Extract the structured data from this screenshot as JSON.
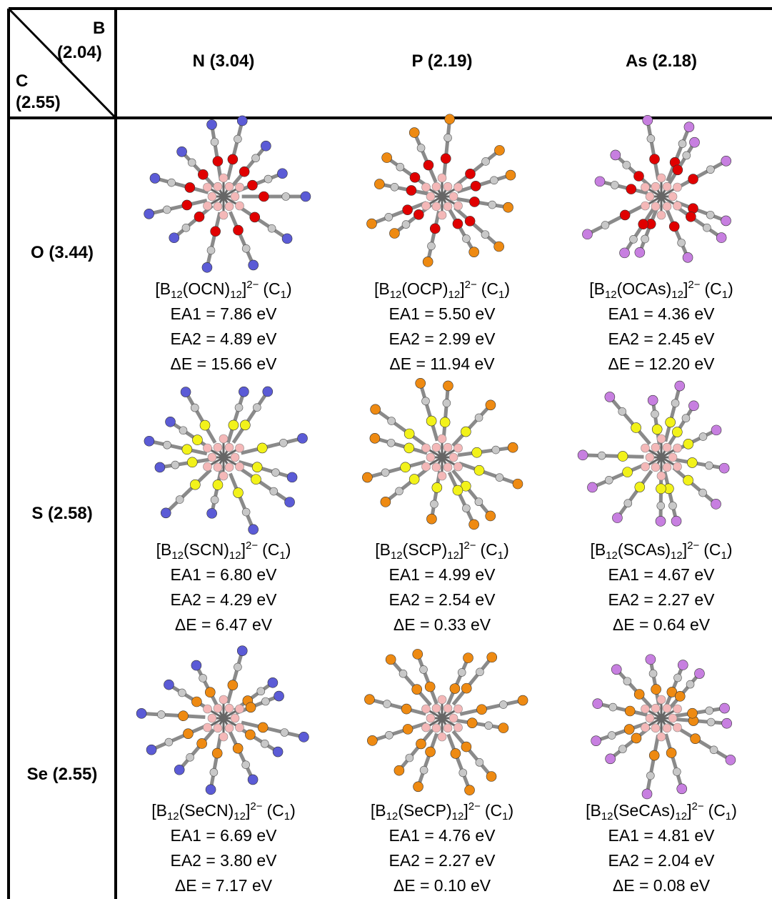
{
  "corner": {
    "top": "B",
    "top_value": "(2.04)",
    "left": "C",
    "left_value": "(2.55)"
  },
  "columns": [
    "N (3.04)",
    "P (2.19)",
    "As (2.18)"
  ],
  "rows": [
    {
      "label": "O (3.44)",
      "cells": [
        {
          "formula": [
            "[B",
            "12",
            "(OCN)",
            "12",
            "]",
            "2−",
            "(C",
            "1",
            ")"
          ],
          "ea1": "EA1 = 7.86 eV",
          "ea2": "EA2 = 4.89 eV",
          "de": "ΔE = 15.66 eV"
        },
        {
          "formula": [
            "[B",
            "12",
            "(OCP)",
            "12",
            "]",
            "2−",
            "(C",
            "1",
            ")"
          ],
          "ea1": "EA1 = 5.50 eV",
          "ea2": "EA2 = 2.99 eV",
          "de": "ΔE = 11.94 eV"
        },
        {
          "formula": [
            "[B",
            "12",
            "(OCAs)",
            "12",
            "]",
            "2−",
            "(C",
            "1",
            ")"
          ],
          "ea1": "EA1 = 4.36 eV",
          "ea2": "EA2 = 2.45 eV",
          "de": "ΔE = 12.20 eV"
        }
      ]
    },
    {
      "label": "S (2.58)",
      "cells": [
        {
          "formula": [
            "[B",
            "12",
            "(SCN)",
            "12",
            "]",
            "2−",
            "(C",
            "1",
            ")"
          ],
          "ea1": "EA1 = 6.80 eV",
          "ea2": "EA2 = 4.29 eV",
          "de": "ΔE = 6.47 eV"
        },
        {
          "formula": [
            "[B",
            "12",
            "(SCP)",
            "12",
            "]",
            "2−",
            "(C",
            "1",
            ")"
          ],
          "ea1": "EA1 = 4.99 eV",
          "ea2": "EA2 = 2.54 eV",
          "de": "ΔE = 0.33 eV"
        },
        {
          "formula": [
            "[B",
            "12",
            "(SCAs)",
            "12",
            "]",
            "2−",
            "(C",
            "1",
            ")"
          ],
          "ea1": "EA1 = 4.67 eV",
          "ea2": "EA2 = 2.27 eV",
          "de": "ΔE = 0.64 eV"
        }
      ]
    },
    {
      "label": "Se (2.55)",
      "cells": [
        {
          "formula": [
            "[B",
            "12",
            "(SeCN)",
            "12",
            "]",
            "2−",
            "(C",
            "1",
            ")"
          ],
          "ea1": "EA1 = 6.69 eV",
          "ea2": "EA2 = 3.80 eV",
          "de": "ΔE = 7.17 eV"
        },
        {
          "formula": [
            "[B",
            "12",
            "(SeCP)",
            "12",
            "]",
            "2−",
            "(C",
            "1",
            ")"
          ],
          "ea1": "EA1 = 4.76 eV",
          "ea2": "EA2 = 2.27 eV",
          "de": "ΔE = 0.10 eV"
        },
        {
          "formula": [
            "[B",
            "12",
            "(SeCAs)",
            "12",
            "]",
            "2−",
            "(C",
            "1",
            ")"
          ],
          "ea1": "EA1 = 4.81 eV",
          "ea2": "EA2 = 2.04 eV",
          "de": "ΔE = 0.08 eV"
        }
      ]
    }
  ]
}
